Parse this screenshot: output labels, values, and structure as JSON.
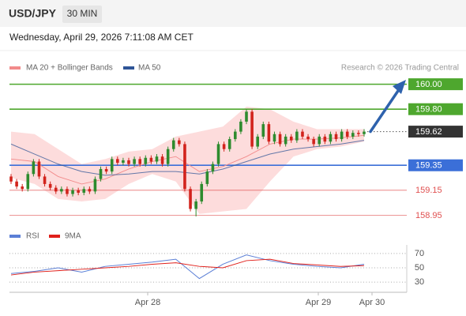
{
  "header": {
    "symbol": "USD/JPY",
    "interval": "30 MIN",
    "timestamp": "Wednesday, April 29, 2026 7:11:08 AM CET",
    "credit": "Research © 2026 Trading Central"
  },
  "chart_data": [
    {
      "type": "candlestick",
      "up_color": "#2e8b2e",
      "down_color": "#d2231c",
      "ylim": [
        158.87,
        160.08
      ],
      "open": [
        159.26,
        159.22,
        159.18,
        159.16,
        159.28,
        159.38,
        159.26,
        159.2,
        159.17,
        159.14,
        159.16,
        159.12,
        159.15,
        159.13,
        159.16,
        159.14,
        159.24,
        159.32,
        159.3,
        159.4,
        159.37,
        159.39,
        159.36,
        159.4,
        159.36,
        159.41,
        159.38,
        159.42,
        159.36,
        159.48,
        159.55,
        159.52,
        159.16,
        159.0,
        159.06,
        159.2,
        159.3,
        159.36,
        159.52,
        159.48,
        159.56,
        159.62,
        159.7,
        159.78,
        159.5,
        159.58,
        159.68,
        159.54,
        159.6,
        159.52,
        159.58,
        159.55,
        159.62,
        159.58,
        159.56,
        159.52,
        159.58,
        159.54,
        159.6,
        159.56,
        159.62,
        159.58,
        159.61,
        159.6
      ],
      "high": [
        159.28,
        159.24,
        159.2,
        159.3,
        159.4,
        159.4,
        159.28,
        159.22,
        159.19,
        159.18,
        159.18,
        159.17,
        159.17,
        159.18,
        159.18,
        159.26,
        159.34,
        159.34,
        159.42,
        159.42,
        159.41,
        159.41,
        159.42,
        159.42,
        159.43,
        159.43,
        159.44,
        159.44,
        159.5,
        159.57,
        159.57,
        159.54,
        159.18,
        159.08,
        159.22,
        159.32,
        159.38,
        159.54,
        159.54,
        159.58,
        159.64,
        159.72,
        159.8,
        159.8,
        159.6,
        159.7,
        159.7,
        159.62,
        159.62,
        159.6,
        159.6,
        159.64,
        159.64,
        159.6,
        159.58,
        159.6,
        159.6,
        159.62,
        159.62,
        159.64,
        159.64,
        159.63,
        159.63,
        159.64
      ],
      "low": [
        159.2,
        159.16,
        159.14,
        159.14,
        159.26,
        159.24,
        159.18,
        159.15,
        159.12,
        159.12,
        159.1,
        159.1,
        159.11,
        159.11,
        159.12,
        159.12,
        159.22,
        159.28,
        159.28,
        159.35,
        159.35,
        159.34,
        159.34,
        159.34,
        159.34,
        159.36,
        159.36,
        159.34,
        159.34,
        159.46,
        159.5,
        159.14,
        158.98,
        158.94,
        159.04,
        159.18,
        159.28,
        159.34,
        159.46,
        159.46,
        159.54,
        159.6,
        159.68,
        159.48,
        159.48,
        159.56,
        159.52,
        159.52,
        159.5,
        159.5,
        159.53,
        159.53,
        159.56,
        159.54,
        159.5,
        159.5,
        159.52,
        159.52,
        159.54,
        159.54,
        159.56,
        159.56,
        159.58,
        159.58
      ],
      "close": [
        159.22,
        159.18,
        159.16,
        159.28,
        159.38,
        159.26,
        159.2,
        159.17,
        159.14,
        159.16,
        159.12,
        159.15,
        159.13,
        159.16,
        159.14,
        159.24,
        159.32,
        159.3,
        159.4,
        159.37,
        159.39,
        159.36,
        159.4,
        159.36,
        159.41,
        159.38,
        159.42,
        159.36,
        159.48,
        159.55,
        159.52,
        159.16,
        159.0,
        159.06,
        159.2,
        159.3,
        159.36,
        159.52,
        159.48,
        159.56,
        159.62,
        159.7,
        159.78,
        159.5,
        159.58,
        159.68,
        159.54,
        159.6,
        159.52,
        159.58,
        159.55,
        159.62,
        159.58,
        159.56,
        159.52,
        159.58,
        159.54,
        159.6,
        159.56,
        159.62,
        159.58,
        159.61,
        159.6,
        159.62
      ],
      "series": [
        {
          "name": "MA 20 + Bollinger Bands",
          "color": "#f28b8b",
          "fill": "#fddcdc",
          "values": [
            159.4,
            159.38,
            159.26,
            159.2,
            159.24,
            159.32,
            159.38,
            159.42,
            159.3,
            159.34,
            159.42,
            159.52,
            159.56,
            159.56,
            159.57,
            159.59
          ],
          "upper": [
            159.62,
            159.6,
            159.48,
            159.36,
            159.4,
            159.46,
            159.48,
            159.58,
            159.62,
            159.66,
            159.82,
            159.8,
            159.7,
            159.64,
            159.64,
            159.64
          ],
          "lower": [
            159.25,
            159.2,
            159.08,
            159.06,
            159.08,
            159.2,
            159.28,
            159.22,
            158.96,
            158.98,
            159.0,
            159.22,
            159.42,
            159.48,
            159.5,
            159.54
          ]
        },
        {
          "name": "MA 50",
          "color": "#2f5597",
          "values": [
            159.52,
            159.44,
            159.36,
            159.3,
            159.27,
            159.28,
            159.3,
            159.3,
            159.28,
            159.32,
            159.38,
            159.44,
            159.48,
            159.5,
            159.52,
            159.55
          ]
        }
      ],
      "levels": [
        {
          "value": 160.0,
          "label": "160.00",
          "color": "#4ea72e",
          "style": "box"
        },
        {
          "value": 159.8,
          "label": "159.80",
          "color": "#4ea72e",
          "style": "box"
        },
        {
          "value": 159.62,
          "label": "159.62",
          "color": "#333333",
          "style": "current"
        },
        {
          "value": 159.35,
          "label": "159.35",
          "color": "#3b6fd8",
          "style": "box"
        },
        {
          "value": 159.15,
          "label": "159.15",
          "color": "#e05050",
          "style": "text"
        },
        {
          "value": 158.95,
          "label": "158.95",
          "color": "#e05050",
          "style": "text"
        }
      ],
      "x_labels": [
        "Apr 28",
        "Apr 29",
        "Apr 30"
      ]
    },
    {
      "type": "line",
      "ylim": [
        18,
        82
      ],
      "yticks": [
        70,
        50,
        30
      ],
      "grid": true,
      "series": [
        {
          "name": "RSI",
          "color": "#5b7fd6",
          "values": [
            42,
            45,
            50,
            44,
            52,
            55,
            58,
            62,
            35,
            55,
            68,
            60,
            55,
            52,
            50,
            55
          ]
        },
        {
          "name": "9MA",
          "color": "#e0201b",
          "values": [
            40,
            44,
            46,
            48,
            50,
            52,
            55,
            57,
            52,
            50,
            60,
            62,
            56,
            54,
            52,
            53
          ]
        }
      ]
    }
  ]
}
